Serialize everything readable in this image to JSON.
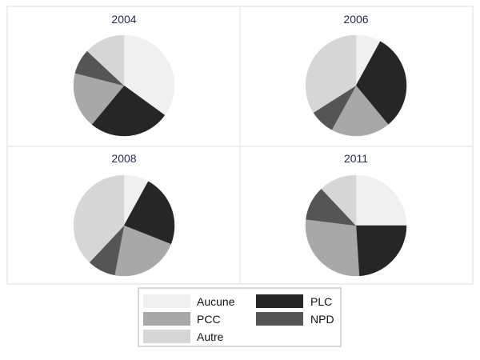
{
  "chart_data": {
    "type": "pie",
    "category_labels": [
      "Aucune",
      "PLC",
      "PCC",
      "NPD",
      "Autre"
    ],
    "colors": {
      "Aucune": "#f0f0f0",
      "PLC": "#262626",
      "PCC": "#a8a8a8",
      "NPD": "#555555",
      "Autre": "#d6d6d6"
    },
    "panels": [
      {
        "title": "2004",
        "slices": [
          {
            "label": "Aucune",
            "value": 0.35
          },
          {
            "label": "PLC",
            "value": 0.26
          },
          {
            "label": "PCC",
            "value": 0.18
          },
          {
            "label": "NPD",
            "value": 0.08
          },
          {
            "label": "Autre",
            "value": 0.13
          }
        ]
      },
      {
        "title": "2006",
        "slices": [
          {
            "label": "Aucune",
            "value": 0.08
          },
          {
            "label": "PLC",
            "value": 0.31
          },
          {
            "label": "PCC",
            "value": 0.19
          },
          {
            "label": "NPD",
            "value": 0.08
          },
          {
            "label": "Autre",
            "value": 0.34
          }
        ]
      },
      {
        "title": "2008",
        "slices": [
          {
            "label": "Aucune",
            "value": 0.08
          },
          {
            "label": "PLC",
            "value": 0.23
          },
          {
            "label": "PCC",
            "value": 0.22
          },
          {
            "label": "NPD",
            "value": 0.09
          },
          {
            "label": "Autre",
            "value": 0.38
          }
        ]
      },
      {
        "title": "2011",
        "slices": [
          {
            "label": "Aucune",
            "value": 0.25
          },
          {
            "label": "PLC",
            "value": 0.24
          },
          {
            "label": "PCC",
            "value": 0.28
          },
          {
            "label": "NPD",
            "value": 0.11
          },
          {
            "label": "Autre",
            "value": 0.12
          }
        ]
      }
    ],
    "legend": {
      "placement": "bottom",
      "rows": [
        [
          "Aucune",
          "PLC"
        ],
        [
          "PCC",
          "NPD"
        ],
        [
          "Autre",
          null
        ]
      ]
    }
  }
}
